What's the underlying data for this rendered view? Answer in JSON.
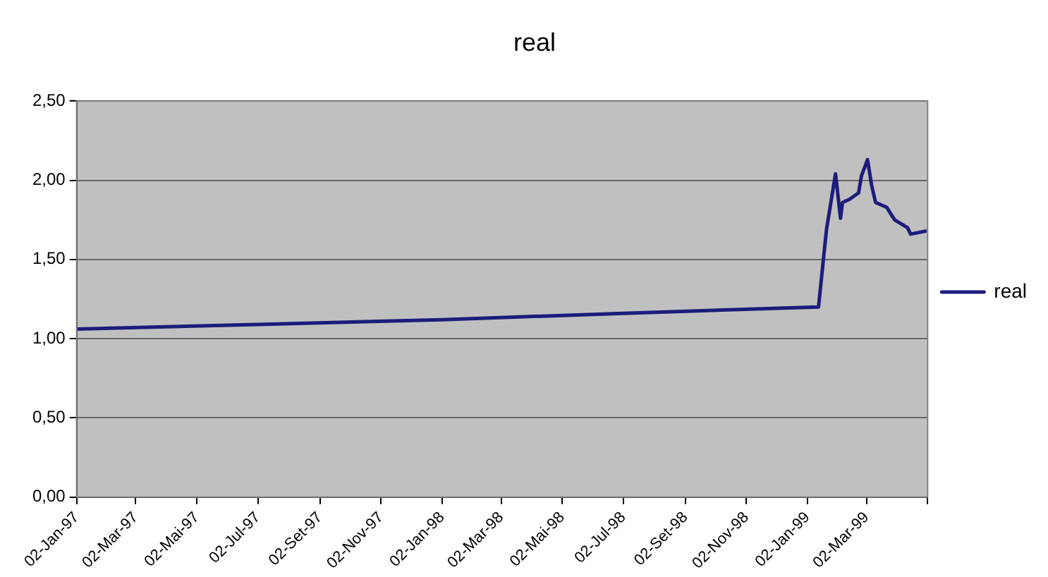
{
  "chart_data": {
    "type": "line",
    "title": "real",
    "x": [
      "1997-01-02",
      "1997-07-02",
      "1998-01-02",
      "1998-07-02",
      "1999-01-12",
      "1999-01-13",
      "1999-01-21",
      "1999-01-30",
      "1999-02-04",
      "1999-02-06",
      "1999-02-13",
      "1999-02-22",
      "1999-02-25",
      "1999-03-03",
      "1999-03-07",
      "1999-03-11",
      "1999-03-22",
      "1999-03-30",
      "1999-04-12",
      "1999-04-15",
      "1999-05-01"
    ],
    "series": [
      {
        "name": "real",
        "color": "#1c1c7c",
        "values": [
          1.06,
          1.09,
          1.12,
          1.16,
          1.2,
          1.2,
          1.69,
          2.04,
          1.76,
          1.86,
          1.88,
          1.92,
          2.03,
          2.13,
          1.97,
          1.86,
          1.83,
          1.75,
          1.7,
          1.66,
          1.68
        ]
      }
    ],
    "xlim": [
      "1997-01-02",
      "1999-05-02"
    ],
    "xticks": [
      {
        "value": "1997-01-02",
        "label": "02-Jan-97"
      },
      {
        "value": "1997-03-02",
        "label": "02-Mar-97"
      },
      {
        "value": "1997-05-02",
        "label": "02-Mai-97"
      },
      {
        "value": "1997-07-02",
        "label": "02-Jul-97"
      },
      {
        "value": "1997-09-02",
        "label": "02-Set-97"
      },
      {
        "value": "1997-11-02",
        "label": "02-Nov-97"
      },
      {
        "value": "1998-01-02",
        "label": "02-Jan-98"
      },
      {
        "value": "1998-03-02",
        "label": "02-Mar-98"
      },
      {
        "value": "1998-05-02",
        "label": "02-Mai-98"
      },
      {
        "value": "1998-07-02",
        "label": "02-Jul-98"
      },
      {
        "value": "1998-09-02",
        "label": "02-Set-98"
      },
      {
        "value": "1998-11-02",
        "label": "02-Nov-98"
      },
      {
        "value": "1999-01-02",
        "label": "02-Jan-99"
      },
      {
        "value": "1999-03-02",
        "label": "02-Mar-99"
      },
      {
        "value": "1999-05-02",
        "label": null
      }
    ],
    "ylim": [
      0,
      2.5
    ],
    "yticks": [
      {
        "value": 0,
        "label": "0,00"
      },
      {
        "value": 0.5,
        "label": "0,50"
      },
      {
        "value": 1,
        "label": "1,00"
      },
      {
        "value": 1.5,
        "label": "1,50"
      },
      {
        "value": 2,
        "label": "2,00"
      },
      {
        "value": 2.5,
        "label": "2,50"
      }
    ],
    "grid": "y",
    "legend": "right",
    "marker": "none",
    "line_style": "solid"
  }
}
